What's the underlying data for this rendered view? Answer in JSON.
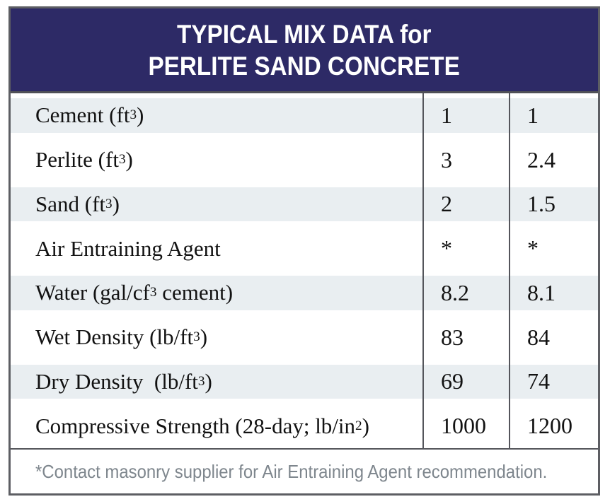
{
  "header": {
    "title_line1": "TYPICAL MIX DATA for",
    "title_line2": "PERLITE SAND CONCRETE"
  },
  "table": {
    "rows": [
      {
        "label": "Cement (ft{3})",
        "values": [
          "1",
          "1"
        ]
      },
      {
        "label": "Perlite (ft{3})",
        "values": [
          "3",
          "2.4"
        ]
      },
      {
        "label": "Sand (ft{3})",
        "values": [
          "2",
          "1.5"
        ]
      },
      {
        "label": "Air Entraining Agent",
        "values": [
          "*",
          "*"
        ]
      },
      {
        "label": "Water (gal/cf{3} cement)",
        "values": [
          "8.2",
          "8.1"
        ]
      },
      {
        "label": "Wet Density (lb/ft{3})",
        "values": [
          "83",
          "84"
        ]
      },
      {
        "label": "Dry Density  (lb/ft{3})",
        "values": [
          "69",
          "74"
        ]
      },
      {
        "label": "Compressive Strength (28-day; lb/in{2})",
        "values": [
          "1000",
          "1200"
        ]
      }
    ]
  },
  "footnote": {
    "text": "*Contact masonry supplier for Air Entraining Agent recommendation."
  },
  "chart_data": {
    "type": "table",
    "title": "TYPICAL MIX DATA for PERLITE SAND CONCRETE",
    "rows": [
      [
        "Cement (ft³)",
        "1",
        "1"
      ],
      [
        "Perlite (ft³)",
        "3",
        "2.4"
      ],
      [
        "Sand (ft³)",
        "2",
        "1.5"
      ],
      [
        "Air Entraining Agent",
        "*",
        "*"
      ],
      [
        "Water (gal/cf³ cement)",
        "8.2",
        "8.1"
      ],
      [
        "Wet Density (lb/ft³)",
        "83",
        "84"
      ],
      [
        "Dry Density (lb/ft³)",
        "69",
        "74"
      ],
      [
        "Compressive Strength (28-day; lb/in²)",
        "1000",
        "1200"
      ]
    ],
    "footnote": "*Contact masonry supplier for Air Entraining Agent recommendation."
  },
  "colors": {
    "header_bg": "#2d2a66",
    "stripe": "#e9eef1",
    "border": "#54555b",
    "footnote_text": "#7e868d"
  }
}
